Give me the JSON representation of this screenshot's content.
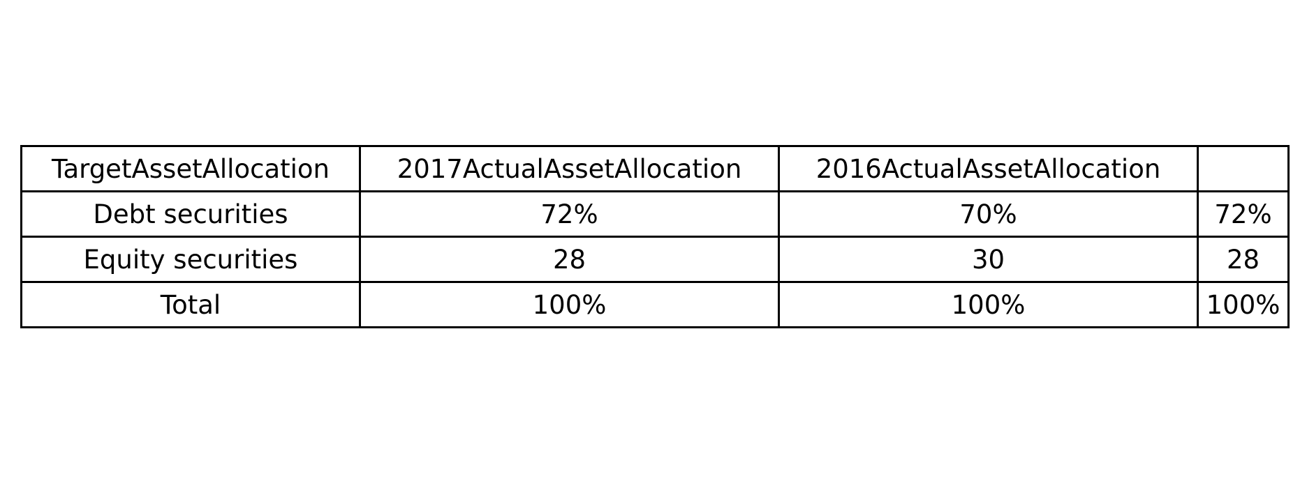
{
  "table": {
    "header": [
      "TargetAssetAllocation",
      "2017ActualAssetAllocation",
      "2016ActualAssetAllocation",
      ""
    ],
    "rows": [
      [
        "Debt securities",
        "72%",
        "70%",
        "72%"
      ],
      [
        "Equity securities",
        "28",
        "30",
        "28"
      ],
      [
        "Total",
        "100%",
        "100%",
        "100%"
      ]
    ]
  }
}
